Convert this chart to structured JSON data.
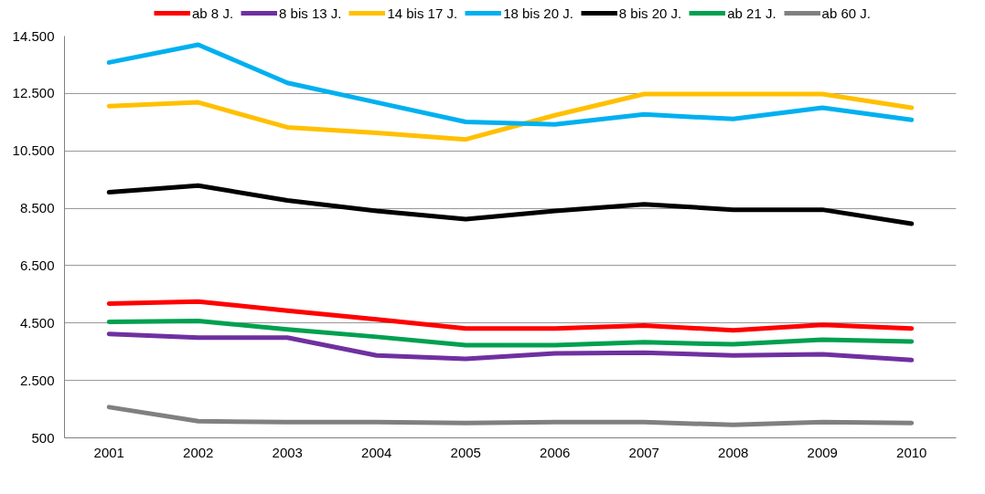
{
  "chart_data": {
    "type": "line",
    "categories": [
      "2001",
      "2002",
      "2003",
      "2004",
      "2005",
      "2006",
      "2007",
      "2008",
      "2009",
      "2010"
    ],
    "series": [
      {
        "name": "ab 8 J.",
        "color": "#ff0000",
        "values": [
          5180,
          5250,
          4930,
          4630,
          4310,
          4310,
          4410,
          4250,
          4440,
          4310
        ]
      },
      {
        "name": "8 bis 13 J.",
        "color": "#7030a0",
        "values": [
          4120,
          3990,
          3990,
          3370,
          3250,
          3440,
          3470,
          3370,
          3410,
          3210
        ]
      },
      {
        "name": "14 bis 17 J.",
        "color": "#ffc000",
        "values": [
          12060,
          12190,
          11320,
          11130,
          10900,
          11740,
          12480,
          12480,
          12480,
          12000
        ]
      },
      {
        "name": "18 bis 20 J.",
        "color": "#00b0f0",
        "values": [
          13580,
          14200,
          12870,
          12190,
          11510,
          11420,
          11770,
          11610,
          12000,
          11580
        ]
      },
      {
        "name": "8 bis 20 J.",
        "color": "#000000",
        "values": [
          9060,
          9290,
          8770,
          8410,
          8120,
          8410,
          8640,
          8450,
          8450,
          7960
        ]
      },
      {
        "name": "ab 21 J.",
        "color": "#00a050",
        "values": [
          4540,
          4570,
          4280,
          4020,
          3730,
          3730,
          3830,
          3760,
          3920,
          3860
        ]
      },
      {
        "name": "ab 60 J.",
        "color": "#808080",
        "values": [
          1570,
          1080,
          1050,
          1050,
          1020,
          1050,
          1050,
          950,
          1050,
          1020
        ]
      }
    ],
    "ylim": [
      500,
      14500
    ],
    "yticks": [
      {
        "value": 500,
        "label": "500"
      },
      {
        "value": 2500,
        "label": "2.500"
      },
      {
        "value": 4500,
        "label": "4.500"
      },
      {
        "value": 6500,
        "label": "6.500"
      },
      {
        "value": 8500,
        "label": "8.500"
      },
      {
        "value": 10500,
        "label": "10.500"
      },
      {
        "value": 12500,
        "label": "12.500"
      },
      {
        "value": 14500,
        "label": "14.500"
      }
    ],
    "grid": "y",
    "legend": "top",
    "marker": "none",
    "line_style": "solid"
  }
}
